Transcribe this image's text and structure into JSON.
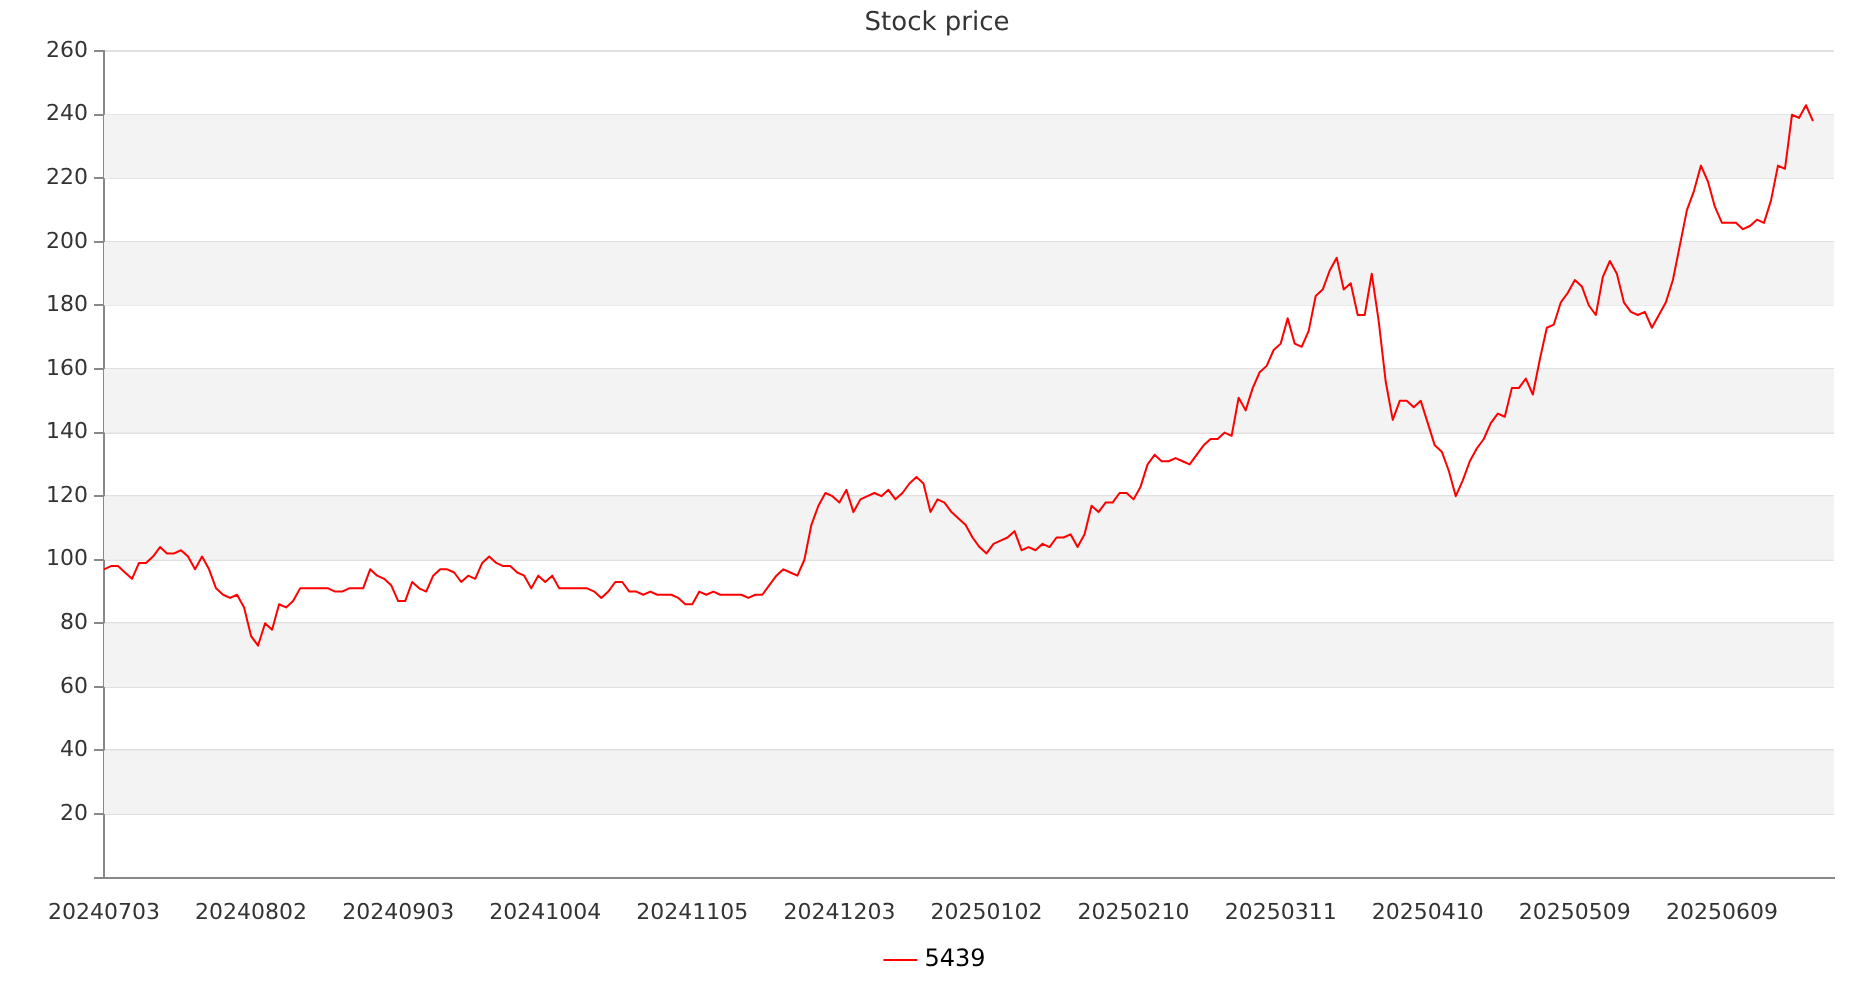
{
  "chart_data": {
    "type": "line",
    "title": "Stock price",
    "categories": [
      "20240703",
      null,
      null,
      null,
      null,
      null,
      null,
      null,
      null,
      null,
      null,
      null,
      null,
      null,
      null,
      null,
      null,
      null,
      null,
      null,
      null,
      "20240802",
      null,
      null,
      null,
      null,
      null,
      null,
      null,
      null,
      null,
      null,
      null,
      null,
      null,
      null,
      null,
      null,
      null,
      null,
      null,
      null,
      "20240903",
      null,
      null,
      null,
      null,
      null,
      null,
      null,
      null,
      null,
      null,
      null,
      null,
      null,
      null,
      null,
      null,
      null,
      null,
      null,
      null,
      "20241004",
      null,
      null,
      null,
      null,
      null,
      null,
      null,
      null,
      null,
      null,
      null,
      null,
      null,
      null,
      null,
      null,
      null,
      null,
      null,
      null,
      "20241105",
      null,
      null,
      null,
      null,
      null,
      null,
      null,
      null,
      null,
      null,
      null,
      null,
      null,
      null,
      null,
      null,
      null,
      null,
      null,
      null,
      "20241203",
      null,
      null,
      null,
      null,
      null,
      null,
      null,
      null,
      null,
      null,
      null,
      null,
      null,
      null,
      null,
      null,
      null,
      null,
      null,
      null,
      "20250102",
      null,
      null,
      null,
      null,
      null,
      null,
      null,
      null,
      null,
      null,
      null,
      null,
      null,
      null,
      null,
      null,
      null,
      null,
      null,
      null,
      "20250210",
      null,
      null,
      null,
      null,
      null,
      null,
      null,
      null,
      null,
      null,
      null,
      null,
      null,
      null,
      null,
      null,
      null,
      null,
      null,
      null,
      "20250311",
      null,
      null,
      null,
      null,
      null,
      null,
      null,
      null,
      null,
      null,
      null,
      null,
      null,
      null,
      null,
      null,
      null,
      null,
      null,
      null,
      "20250410",
      null,
      null,
      null,
      null,
      null,
      null,
      null,
      null,
      null,
      null,
      null,
      null,
      null,
      null,
      null,
      null,
      null,
      null,
      null,
      null,
      "20250509",
      null,
      null,
      null,
      null,
      null,
      null,
      null,
      null,
      null,
      null,
      null,
      null,
      null,
      null,
      null,
      null,
      null,
      null,
      null,
      null,
      "20250609",
      null,
      null,
      null,
      null,
      null,
      null,
      null,
      null,
      null,
      null,
      null,
      null,
      null,
      null,
      null,
      null
    ],
    "series": [
      {
        "name": "5439",
        "color": "#ff0000",
        "values": [
          97,
          98,
          98,
          96,
          94,
          99,
          99,
          101,
          104,
          102,
          102,
          103,
          101,
          97,
          101,
          97,
          91,
          89,
          88,
          89,
          85,
          76,
          73,
          80,
          78,
          86,
          85,
          87,
          91,
          91,
          91,
          91,
          91,
          90,
          90,
          91,
          91,
          91,
          97,
          95,
          94,
          92,
          87,
          87,
          93,
          91,
          90,
          95,
          97,
          97,
          96,
          93,
          95,
          94,
          99,
          101,
          99,
          98,
          98,
          96,
          95,
          91,
          95,
          93,
          95,
          91,
          91,
          91,
          91,
          91,
          90,
          88,
          90,
          93,
          93,
          90,
          90,
          89,
          90,
          89,
          89,
          89,
          88,
          86,
          86,
          90,
          89,
          90,
          89,
          89,
          89,
          89,
          88,
          89,
          89,
          92,
          95,
          97,
          96,
          95,
          100,
          111,
          117,
          121,
          120,
          118,
          122,
          115,
          119,
          120,
          121,
          120,
          122,
          119,
          121,
          124,
          126,
          124,
          115,
          119,
          118,
          115,
          113,
          111,
          107,
          104,
          102,
          105,
          106,
          107,
          109,
          103,
          104,
          103,
          105,
          104,
          107,
          107,
          108,
          104,
          108,
          117,
          115,
          118,
          118,
          121,
          121,
          119,
          123,
          130,
          133,
          131,
          131,
          132,
          131,
          130,
          133,
          136,
          138,
          138,
          140,
          139,
          151,
          147,
          154,
          159,
          161,
          166,
          168,
          176,
          168,
          167,
          172,
          183,
          185,
          191,
          195,
          185,
          187,
          177,
          177,
          190,
          175,
          156,
          144,
          150,
          150,
          148,
          150,
          143,
          136,
          134,
          128,
          120,
          125,
          131,
          135,
          138,
          143,
          146,
          145,
          154,
          154,
          157,
          152,
          163,
          173,
          174,
          181,
          184,
          188,
          186,
          180,
          177,
          189,
          194,
          190,
          181,
          178,
          177,
          178,
          173,
          177,
          181,
          188,
          199,
          210,
          216,
          224,
          219,
          211,
          206,
          206,
          206,
          204,
          205,
          207,
          206,
          213,
          224,
          223,
          240,
          239,
          243,
          238,
          null,
          null,
          null
        ]
      }
    ],
    "ylim": [
      0,
      260
    ],
    "yticks": [
      {
        "value": 0,
        "label": null
      },
      20,
      40,
      60,
      80,
      100,
      120,
      140,
      160,
      180,
      200,
      220,
      240,
      260
    ],
    "grid": "y",
    "legend": "bottom",
    "marker": "none",
    "line_style": "solid"
  }
}
